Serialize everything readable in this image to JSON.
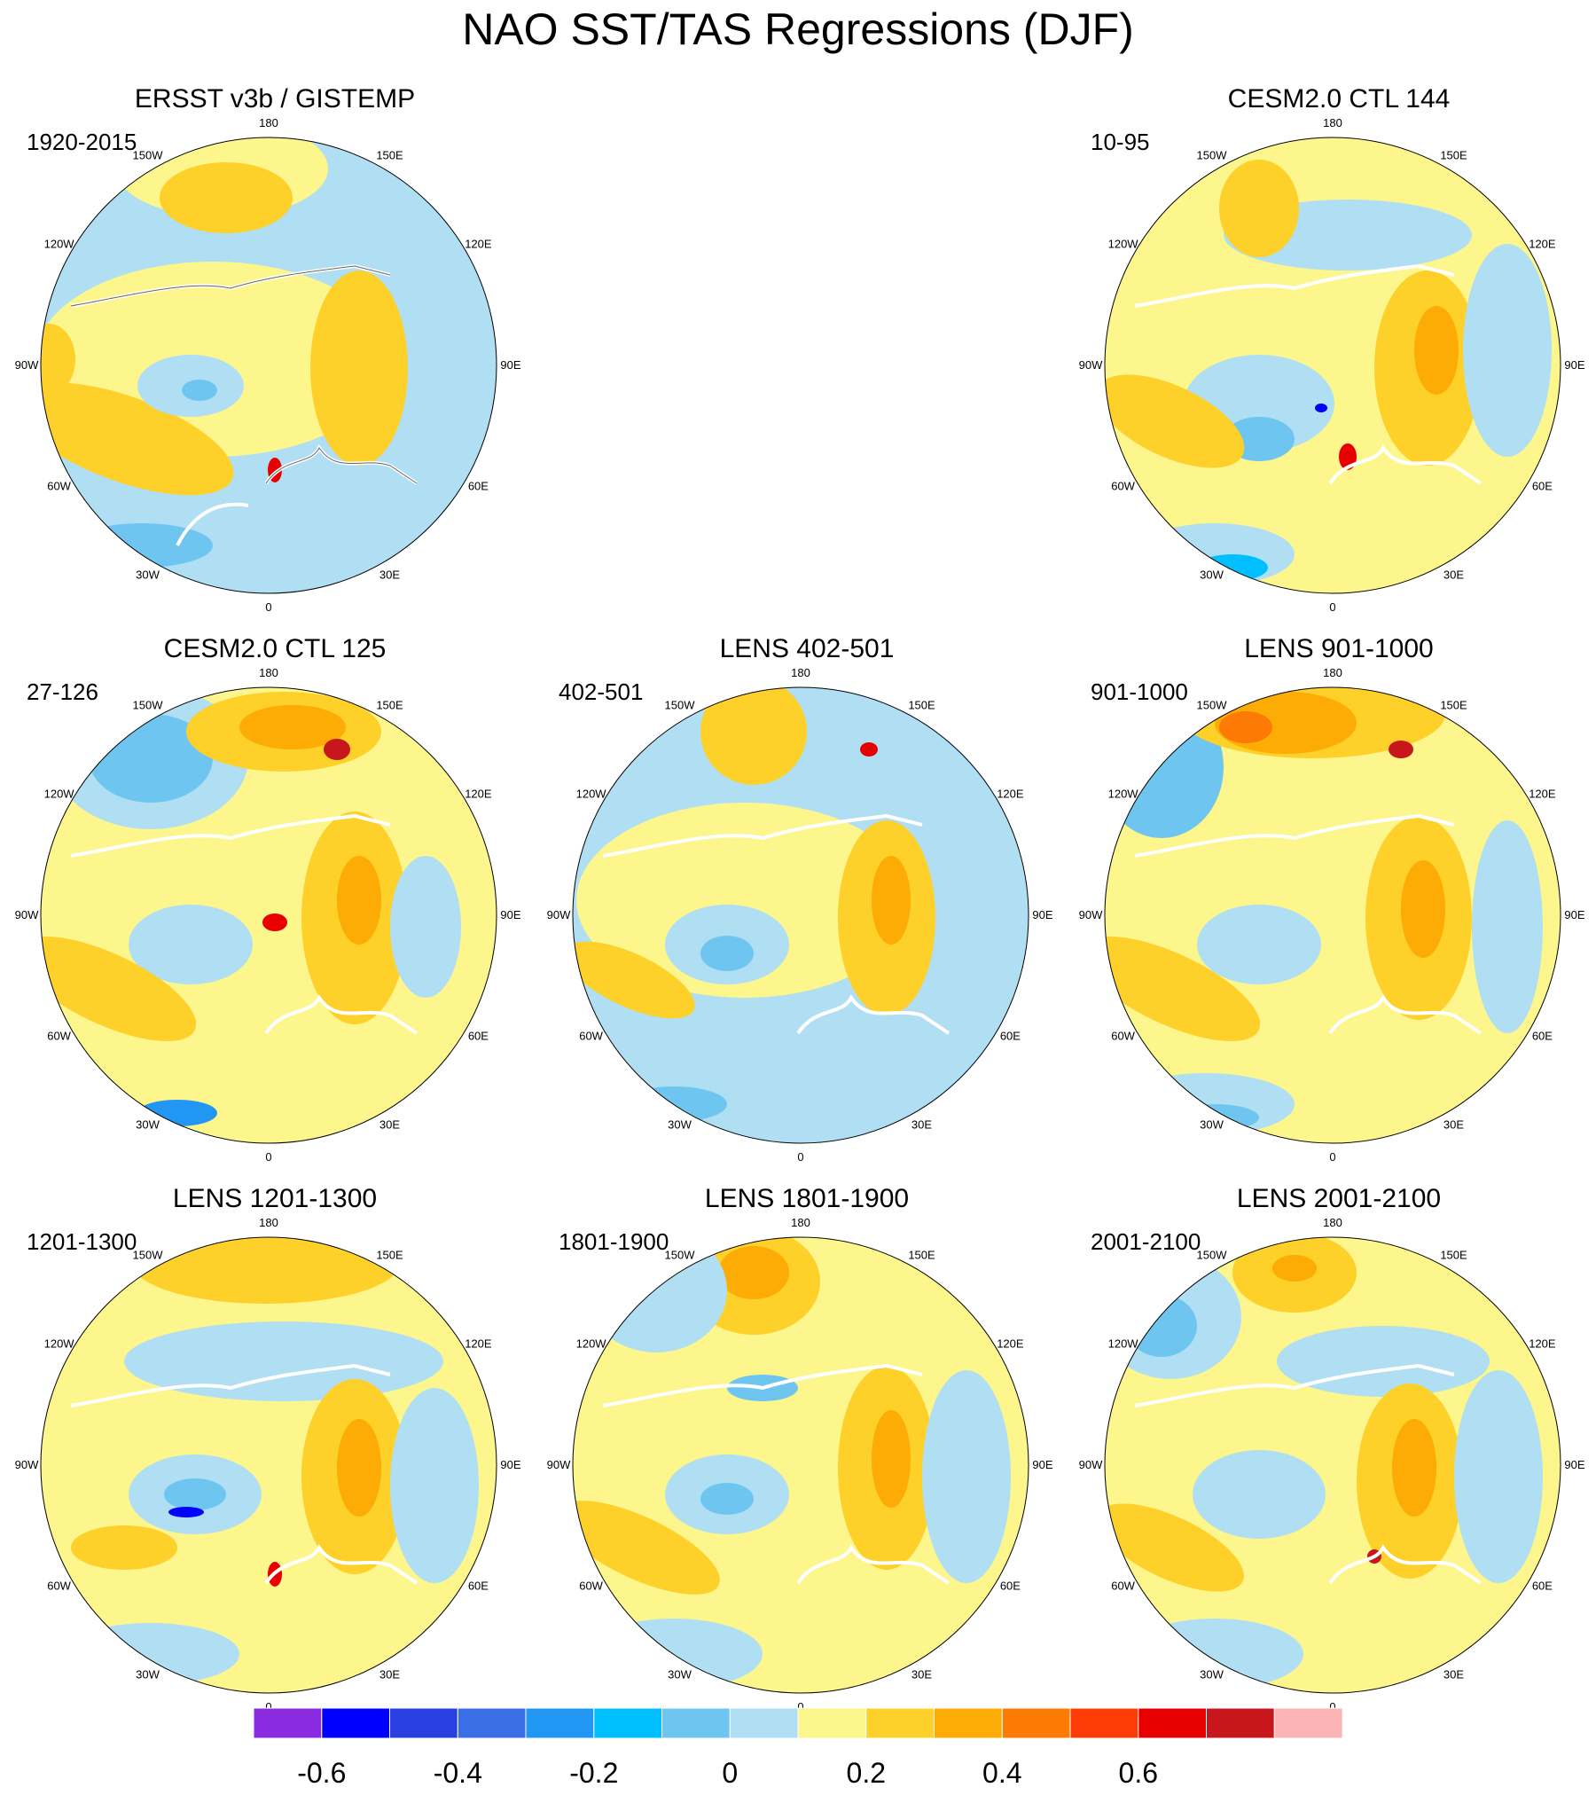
{
  "title": "NAO SST/TAS Regressions (DJF)",
  "panels": [
    {
      "title": "ERSST v3b / GISTEMP",
      "period": "1920-2015"
    },
    {
      "title": "CESM2.0 CTL 144",
      "period": "10-95"
    },
    {
      "title": "CESM2.0 CTL 125",
      "period": "27-126"
    },
    {
      "title": "LENS 402-501",
      "period": "402-501"
    },
    {
      "title": "LENS 901-1000",
      "period": "901-1000"
    },
    {
      "title": "LENS 1201-1300",
      "period": "1201-1300"
    },
    {
      "title": "LENS 1801-1900",
      "period": "1801-1900"
    },
    {
      "title": "LENS 2001-2100",
      "period": "2001-2100"
    }
  ],
  "lon_labels": [
    "180",
    "150E",
    "120E",
    "90E",
    "60E",
    "30E",
    "0",
    "30W",
    "60W",
    "90W",
    "120W",
    "150W"
  ],
  "colorbar": {
    "colors": [
      "#8a2be2",
      "#0000ff",
      "#2a3fe0",
      "#3a6fe8",
      "#2196f3",
      "#00bfff",
      "#6ec6f0",
      "#b0dff3",
      "#fdf68c",
      "#fdd02a",
      "#fdab05",
      "#fd7a05",
      "#fe3c05",
      "#e80000",
      "#c8161d",
      "#fbb4b4"
    ],
    "tick_labels": [
      "-0.6",
      "-0.4",
      "-0.2",
      "0",
      "0.2",
      "0.4",
      "0.6"
    ]
  }
}
